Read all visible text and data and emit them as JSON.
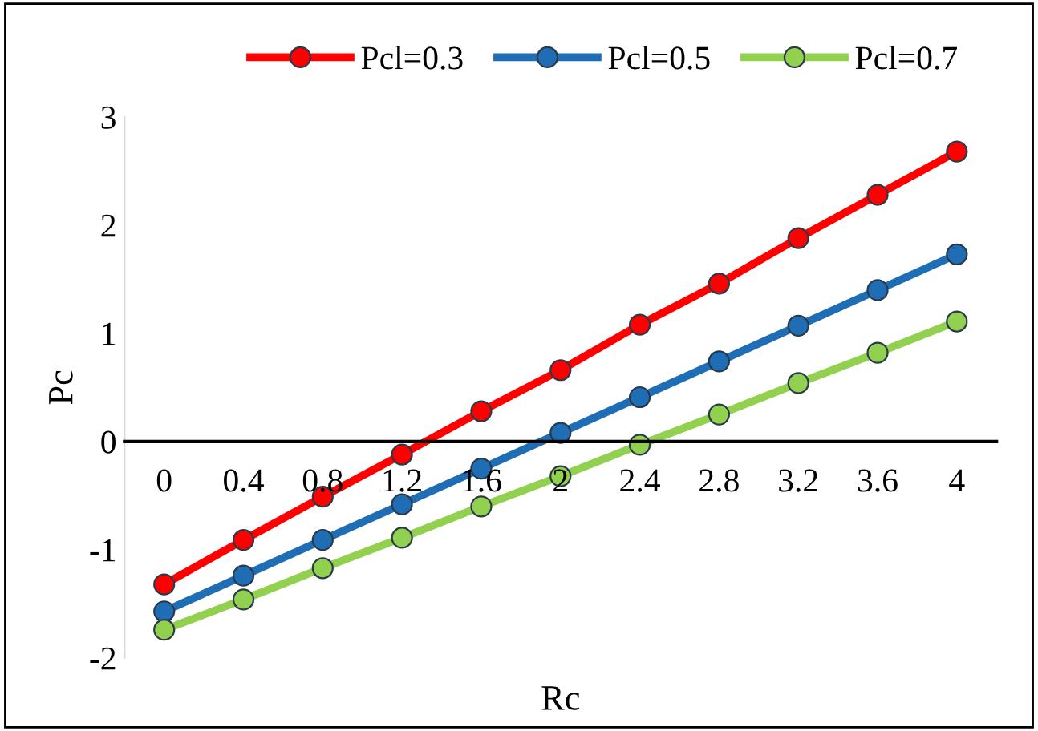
{
  "chart_data": {
    "type": "line",
    "xlabel": "Rc",
    "ylabel": "Pc",
    "categories": [
      "0",
      "0.4",
      "0.8",
      "1.2",
      "1.6",
      "2",
      "2.4",
      "2.8",
      "3.2",
      "3.6",
      "4"
    ],
    "series": [
      {
        "name": "Pcl=0.3",
        "color": "#ff0000",
        "values": [
          -1.32,
          -0.91,
          -0.51,
          -0.12,
          0.28,
          0.66,
          1.08,
          1.46,
          1.88,
          2.28,
          2.68
        ]
      },
      {
        "name": "Pcl=0.5",
        "color": "#1f6eb5",
        "values": [
          -1.57,
          -1.24,
          -0.91,
          -0.58,
          -0.25,
          0.08,
          0.41,
          0.74,
          1.07,
          1.4,
          1.73
        ]
      },
      {
        "name": "Pcl=0.7",
        "color": "#92d050",
        "values": [
          -1.74,
          -1.46,
          -1.17,
          -0.89,
          -0.6,
          -0.32,
          -0.03,
          0.25,
          0.54,
          0.82,
          1.11
        ]
      }
    ],
    "ylim": [
      -2,
      3
    ],
    "yticks": [
      -2,
      -1,
      0,
      1,
      2,
      3
    ],
    "grid": false,
    "legend": "top",
    "marker": "circle",
    "line_style": "solid"
  }
}
